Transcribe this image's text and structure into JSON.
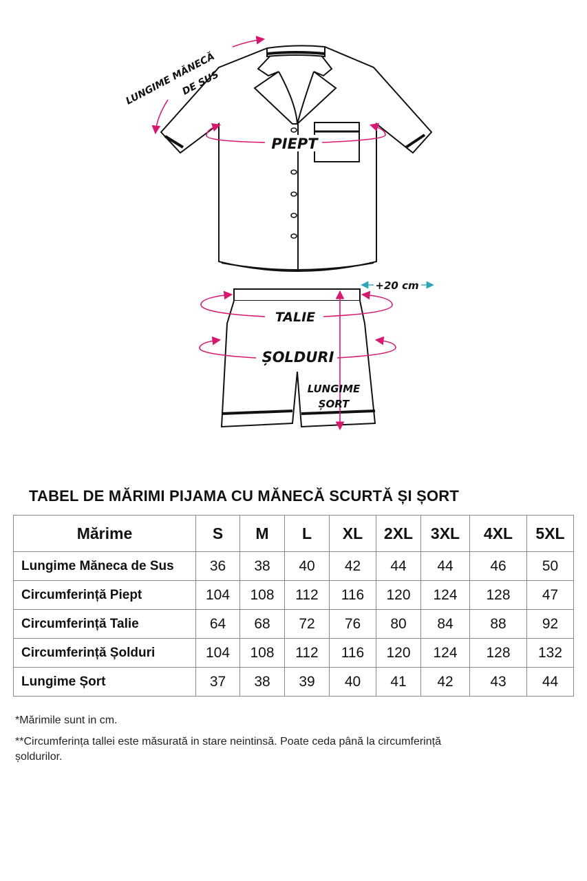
{
  "diagram": {
    "labels": {
      "sleeve_line1": "LUNGIME MĂNECĂ",
      "sleeve_line2": "DE SUS",
      "chest": "PIEPT",
      "waist": "TALIE",
      "hips": "ȘOLDURI",
      "short_length_line1": "LUNGIME",
      "short_length_line2": "ȘORT",
      "stretch": "+20 cm"
    },
    "colors": {
      "measure_arrow": "#d6186f",
      "stretch_arrow": "#2aa6b8",
      "outline": "#111111"
    }
  },
  "table": {
    "title": "TABEL DE MĂRIMI PIJAMA CU MĂNECĂ SCURTĂ ȘI ȘORT",
    "header": [
      "Mărime",
      "S",
      "M",
      "L",
      "XL",
      "2XL",
      "3XL",
      "4XL",
      "5XL"
    ],
    "rows": [
      {
        "label": "Lungime Măneca de Sus",
        "values": [
          "36",
          "38",
          "40",
          "42",
          "44",
          "44",
          "46",
          "50"
        ]
      },
      {
        "label": "Circumferință Piept",
        "values": [
          "104",
          "108",
          "112",
          "116",
          "120",
          "124",
          "128",
          "47"
        ]
      },
      {
        "label": "Circumferință Talie",
        "values": [
          "64",
          "68",
          "72",
          "76",
          "80",
          "84",
          "88",
          "92"
        ]
      },
      {
        "label": "Circumferință Șolduri",
        "values": [
          "104",
          "108",
          "112",
          "116",
          "120",
          "124",
          "128",
          "132"
        ]
      },
      {
        "label": "Lungime Șort",
        "values": [
          "37",
          "38",
          "39",
          "40",
          "41",
          "42",
          "43",
          "44"
        ]
      }
    ]
  },
  "notes": [
    "*Mărimile sunt in cm.",
    "**Circumferința tallei este măsurată in stare neintinsă. Poate ceda până la circumferință",
    "șoldurilor."
  ]
}
